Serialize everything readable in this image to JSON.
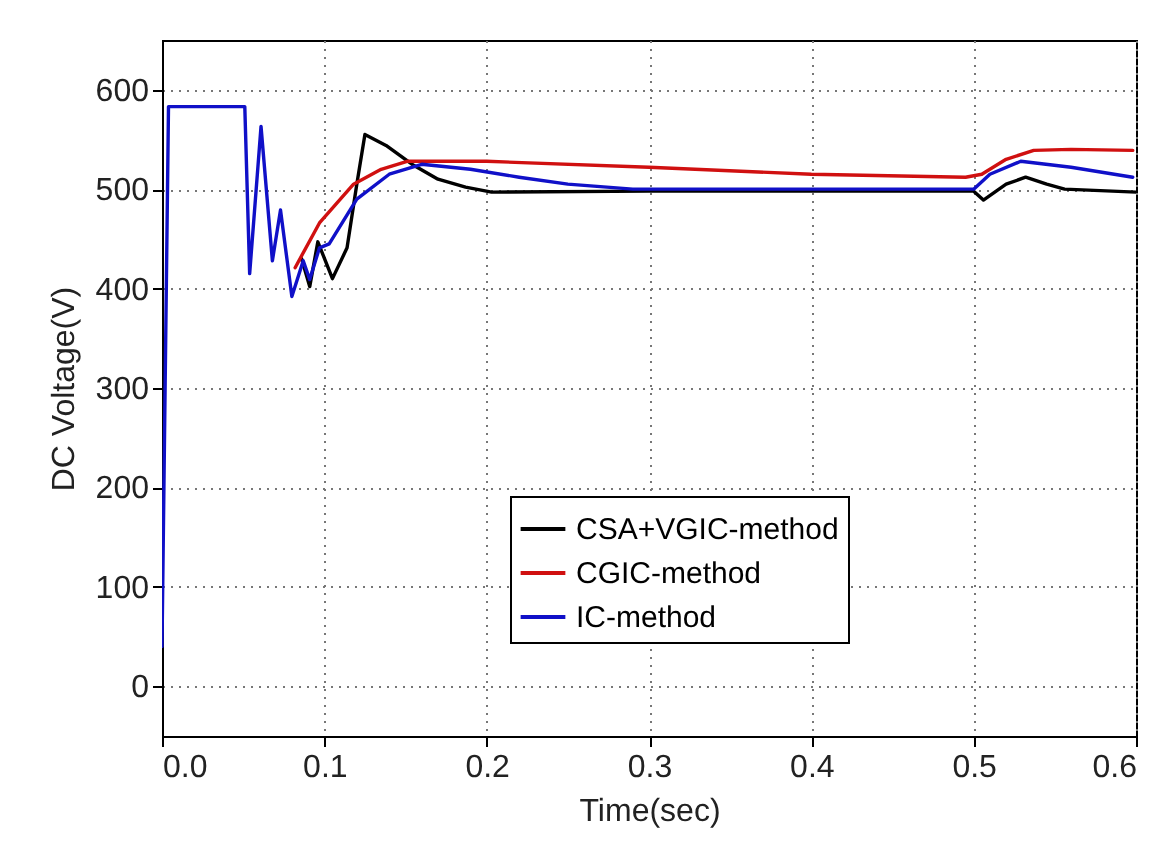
{
  "chart_data": {
    "type": "line",
    "xlabel": "Time(sec)",
    "ylabel": "DC Voltage(V)",
    "xlim": [
      0,
      0.6
    ],
    "ylim": [
      -50,
      650
    ],
    "xticks": [
      {
        "value": 0,
        "label": "0.0"
      },
      0.1,
      0.2,
      0.3,
      0.4,
      0.5,
      0.6
    ],
    "yticks": [
      0,
      100,
      200,
      300,
      400,
      500,
      600
    ],
    "grid": true,
    "legend": "bottom right",
    "line_style": "solid",
    "series": [
      {
        "name": "CSA+VGIC-method",
        "color": "#000000",
        "x": [
          0.086,
          0.091,
          0.096,
          0.105,
          0.114,
          0.12,
          0.125,
          0.138,
          0.155,
          0.17,
          0.187,
          0.203,
          0.3,
          0.4,
          0.5,
          0.506,
          0.52,
          0.532,
          0.545,
          0.556,
          0.6
        ],
        "values": [
          430,
          402,
          447,
          410,
          441,
          505,
          555,
          544,
          524,
          510,
          502,
          497,
          498,
          498,
          498,
          489,
          505,
          512,
          505,
          500,
          497
        ]
      },
      {
        "name": "CGIC-method",
        "color": "#d01010",
        "x": [
          0.082,
          0.097,
          0.118,
          0.135,
          0.151,
          0.2,
          0.3,
          0.4,
          0.495,
          0.505,
          0.52,
          0.537,
          0.56,
          0.598
        ],
        "values": [
          421,
          466,
          505,
          520,
          528,
          528,
          522,
          515,
          512,
          515,
          530,
          539,
          540,
          539
        ]
      },
      {
        "name": "IC-method",
        "color": "#1010c8",
        "x": [
          0,
          0.004,
          0.051,
          0.054,
          0.061,
          0.068,
          0.073,
          0.08,
          0.087,
          0.091,
          0.097,
          0.103,
          0.12,
          0.14,
          0.16,
          0.19,
          0.22,
          0.25,
          0.29,
          0.4,
          0.5,
          0.51,
          0.529,
          0.56,
          0.598
        ],
        "values": [
          40,
          583,
          583,
          415,
          563,
          428,
          479,
          392,
          428,
          409,
          441,
          445,
          490,
          515,
          525,
          520,
          512,
          505,
          500,
          500,
          500,
          515,
          528,
          522,
          512
        ]
      }
    ]
  }
}
